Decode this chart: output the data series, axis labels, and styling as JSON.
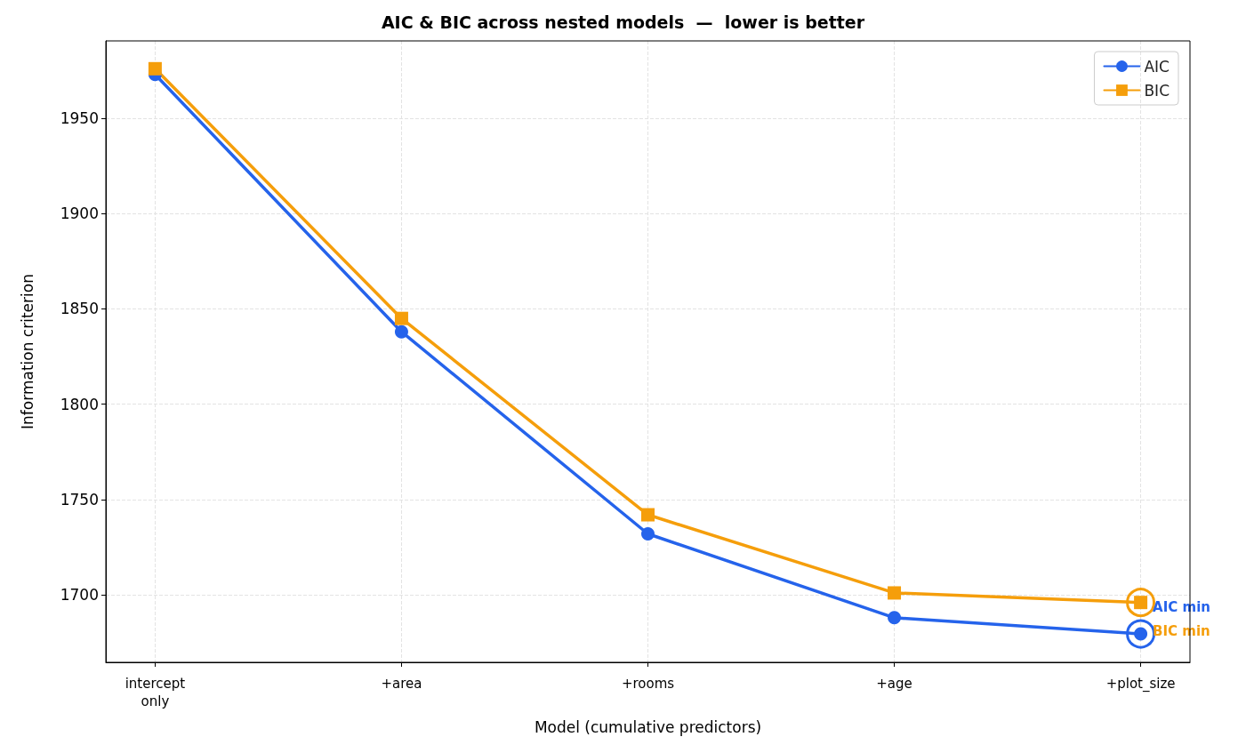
{
  "chart_data": {
    "type": "line",
    "title": "AIC & BIC across nested models  —  lower is better",
    "xlabel": "Model (cumulative predictors)",
    "ylabel": "Information criterion",
    "categories": [
      "intercept\nonly",
      "+area",
      "+rooms",
      "+age",
      "+plot_size"
    ],
    "series": [
      {
        "name": "AIC",
        "color": "#2563eb",
        "marker": "circle",
        "values": [
          1973,
          1838,
          1732,
          1688,
          1679.5
        ]
      },
      {
        "name": "BIC",
        "color": "#f59e0b",
        "marker": "square",
        "values": [
          1976,
          1845,
          1742,
          1701,
          1696
        ]
      }
    ],
    "ylim": [
      1664.6,
      1990.6
    ],
    "yticks": [
      1700,
      1750,
      1800,
      1850,
      1900,
      1950
    ],
    "grid": true,
    "legend": "top right",
    "line_style": "solid",
    "annotations": [
      {
        "text": "AIC min",
        "x": "+plot_size",
        "y": 1679.5
      },
      {
        "text": "BIC min",
        "x": "+plot_size",
        "y": 1696
      }
    ]
  }
}
